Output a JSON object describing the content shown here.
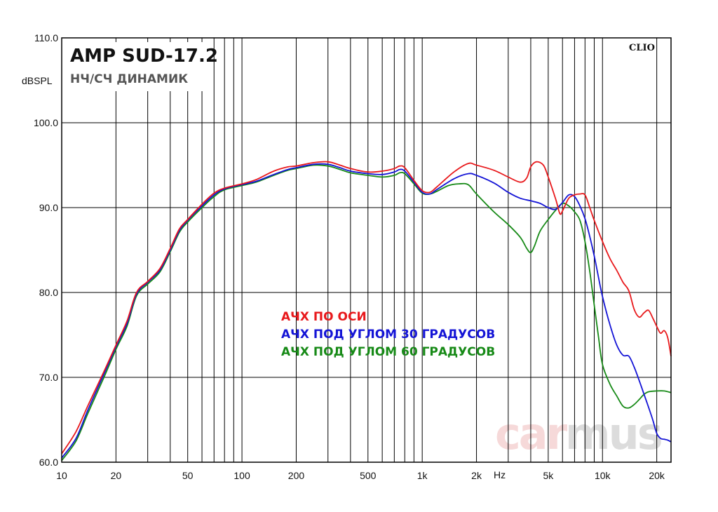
{
  "chart_data": {
    "type": "line",
    "title": "AMP SUD-17.2",
    "subtitle": "НЧ/СЧ ДИНАМИК",
    "brand": "CLIO",
    "watermark": {
      "left": "car",
      "right": "mus"
    },
    "ylabel": "dBSPL",
    "xunit": "Hz",
    "xscale": "log",
    "xlim": [
      10,
      24000
    ],
    "ylim": [
      60,
      110
    ],
    "grid": true,
    "y_ticks": [
      "60.0",
      "70.0",
      "80.0",
      "90.0",
      "100.0",
      "110.0"
    ],
    "x_ticks": [
      {
        "value": 10,
        "label": "10"
      },
      {
        "value": 20,
        "label": "20"
      },
      {
        "value": 50,
        "label": "50"
      },
      {
        "value": 100,
        "label": "100"
      },
      {
        "value": 200,
        "label": "200"
      },
      {
        "value": 500,
        "label": "500"
      },
      {
        "value": 1000,
        "label": "1k"
      },
      {
        "value": 2000,
        "label": "2k"
      },
      {
        "value": 5000,
        "label": "5k"
      },
      {
        "value": 10000,
        "label": "10k"
      },
      {
        "value": 20000,
        "label": "20k"
      }
    ],
    "legend_position": "center",
    "series": [
      {
        "name": "АЧХ ПО ОСИ",
        "color": "#e8191c",
        "points": [
          [
            10,
            61
          ],
          [
            12,
            63.6
          ],
          [
            14,
            66.7
          ],
          [
            17,
            70.5
          ],
          [
            20,
            73.8
          ],
          [
            23,
            76.6
          ],
          [
            26,
            80
          ],
          [
            30,
            81.3
          ],
          [
            35,
            82.8
          ],
          [
            40,
            85.2
          ],
          [
            45,
            87.5
          ],
          [
            50,
            88.6
          ],
          [
            60,
            90.4
          ],
          [
            70,
            91.7
          ],
          [
            80,
            92.3
          ],
          [
            100,
            92.8
          ],
          [
            120,
            93.3
          ],
          [
            150,
            94.3
          ],
          [
            180,
            94.8
          ],
          [
            200,
            94.9
          ],
          [
            250,
            95.3
          ],
          [
            300,
            95.4
          ],
          [
            350,
            95
          ],
          [
            400,
            94.6
          ],
          [
            500,
            94.2
          ],
          [
            600,
            94.3
          ],
          [
            700,
            94.6
          ],
          [
            750,
            94.9
          ],
          [
            800,
            94.7
          ],
          [
            900,
            93.2
          ],
          [
            1000,
            92
          ],
          [
            1100,
            91.8
          ],
          [
            1200,
            92.4
          ],
          [
            1500,
            94.2
          ],
          [
            1800,
            95.2
          ],
          [
            2000,
            95
          ],
          [
            2500,
            94.4
          ],
          [
            3000,
            93.6
          ],
          [
            3500,
            93
          ],
          [
            3800,
            93.5
          ],
          [
            4000,
            94.8
          ],
          [
            4300,
            95.4
          ],
          [
            4700,
            95
          ],
          [
            5000,
            93.6
          ],
          [
            5500,
            91
          ],
          [
            5800,
            89.3
          ],
          [
            6000,
            89.6
          ],
          [
            6500,
            91.1
          ],
          [
            7000,
            91.5
          ],
          [
            7500,
            91.6
          ],
          [
            8000,
            91.5
          ],
          [
            8500,
            90
          ],
          [
            9000,
            88.5
          ],
          [
            10000,
            86
          ],
          [
            11000,
            84
          ],
          [
            12000,
            82.6
          ],
          [
            13000,
            81.2
          ],
          [
            14000,
            80.2
          ],
          [
            15000,
            78
          ],
          [
            16000,
            77.1
          ],
          [
            17000,
            77.6
          ],
          [
            18000,
            77.9
          ],
          [
            19000,
            77
          ],
          [
            20000,
            76
          ],
          [
            21000,
            75.2
          ],
          [
            22000,
            75.5
          ],
          [
            23000,
            74.7
          ],
          [
            24000,
            72.5
          ]
        ]
      },
      {
        "name": "АЧХ ПОД УГЛОМ 30 ГРАДУСОВ",
        "color": "#1414d6",
        "points": [
          [
            10,
            60.5
          ],
          [
            12,
            62.8
          ],
          [
            14,
            66.2
          ],
          [
            17,
            70.2
          ],
          [
            20,
            73.6
          ],
          [
            23,
            76.3
          ],
          [
            26,
            79.8
          ],
          [
            30,
            81.2
          ],
          [
            35,
            82.6
          ],
          [
            40,
            85
          ],
          [
            45,
            87.3
          ],
          [
            50,
            88.5
          ],
          [
            60,
            90.2
          ],
          [
            70,
            91.5
          ],
          [
            80,
            92.2
          ],
          [
            100,
            92.7
          ],
          [
            120,
            93.1
          ],
          [
            150,
            93.9
          ],
          [
            180,
            94.5
          ],
          [
            200,
            94.7
          ],
          [
            250,
            95.1
          ],
          [
            300,
            95.1
          ],
          [
            350,
            94.7
          ],
          [
            400,
            94.3
          ],
          [
            500,
            94
          ],
          [
            600,
            93.9
          ],
          [
            700,
            94.2
          ],
          [
            750,
            94.5
          ],
          [
            800,
            94.3
          ],
          [
            900,
            93
          ],
          [
            1000,
            91.8
          ],
          [
            1100,
            91.6
          ],
          [
            1200,
            92.1
          ],
          [
            1500,
            93.4
          ],
          [
            1800,
            94
          ],
          [
            2000,
            93.8
          ],
          [
            2500,
            92.9
          ],
          [
            3000,
            91.8
          ],
          [
            3500,
            91.1
          ],
          [
            4000,
            90.8
          ],
          [
            4500,
            90.5
          ],
          [
            5000,
            90
          ],
          [
            5500,
            89.8
          ],
          [
            6000,
            90.6
          ],
          [
            6500,
            91.5
          ],
          [
            7000,
            91.3
          ],
          [
            7500,
            90.2
          ],
          [
            8000,
            88.7
          ],
          [
            8500,
            86.6
          ],
          [
            9000,
            84.3
          ],
          [
            9500,
            81.8
          ],
          [
            10000,
            79.5
          ],
          [
            11000,
            76.2
          ],
          [
            12000,
            73.8
          ],
          [
            13000,
            72.6
          ],
          [
            14000,
            72.5
          ],
          [
            15000,
            71.2
          ],
          [
            16000,
            69.6
          ],
          [
            17000,
            68
          ],
          [
            18000,
            66.5
          ],
          [
            19000,
            65
          ],
          [
            20000,
            63.4
          ],
          [
            21000,
            62.8
          ],
          [
            22000,
            62.7
          ],
          [
            23000,
            62.6
          ],
          [
            24000,
            62.4
          ]
        ]
      },
      {
        "name": "АЧХ ПОД УГЛОМ 60 ГРАДУСОВ",
        "color": "#178a17",
        "points": [
          [
            10,
            60.2
          ],
          [
            12,
            62.5
          ],
          [
            14,
            65.8
          ],
          [
            17,
            69.8
          ],
          [
            20,
            73.3
          ],
          [
            23,
            76
          ],
          [
            26,
            79.6
          ],
          [
            30,
            81
          ],
          [
            35,
            82.4
          ],
          [
            40,
            84.8
          ],
          [
            45,
            87.1
          ],
          [
            50,
            88.3
          ],
          [
            60,
            90
          ],
          [
            70,
            91.3
          ],
          [
            80,
            92.1
          ],
          [
            100,
            92.6
          ],
          [
            120,
            93
          ],
          [
            150,
            93.8
          ],
          [
            180,
            94.4
          ],
          [
            200,
            94.6
          ],
          [
            250,
            95
          ],
          [
            300,
            94.9
          ],
          [
            350,
            94.5
          ],
          [
            400,
            94.1
          ],
          [
            500,
            93.8
          ],
          [
            600,
            93.6
          ],
          [
            700,
            93.8
          ],
          [
            750,
            94.1
          ],
          [
            800,
            94
          ],
          [
            900,
            92.8
          ],
          [
            1000,
            91.7
          ],
          [
            1100,
            91.6
          ],
          [
            1200,
            91.9
          ],
          [
            1400,
            92.6
          ],
          [
            1600,
            92.8
          ],
          [
            1800,
            92.7
          ],
          [
            2000,
            91.6
          ],
          [
            2500,
            89.5
          ],
          [
            3000,
            88
          ],
          [
            3500,
            86.5
          ],
          [
            3800,
            85.2
          ],
          [
            4000,
            84.7
          ],
          [
            4200,
            85.5
          ],
          [
            4500,
            87.2
          ],
          [
            5000,
            88.6
          ],
          [
            5500,
            89.7
          ],
          [
            6000,
            90.5
          ],
          [
            6500,
            90.2
          ],
          [
            7000,
            89.5
          ],
          [
            7500,
            88.5
          ],
          [
            8000,
            86
          ],
          [
            8500,
            82.5
          ],
          [
            9000,
            78.5
          ],
          [
            9500,
            74.8
          ],
          [
            10000,
            71.5
          ],
          [
            11000,
            69.2
          ],
          [
            12000,
            67.8
          ],
          [
            13000,
            66.6
          ],
          [
            14000,
            66.4
          ],
          [
            15000,
            66.8
          ],
          [
            16000,
            67.4
          ],
          [
            17000,
            68
          ],
          [
            18000,
            68.3
          ],
          [
            20000,
            68.4
          ],
          [
            22000,
            68.4
          ],
          [
            24000,
            68.2
          ]
        ]
      }
    ]
  }
}
